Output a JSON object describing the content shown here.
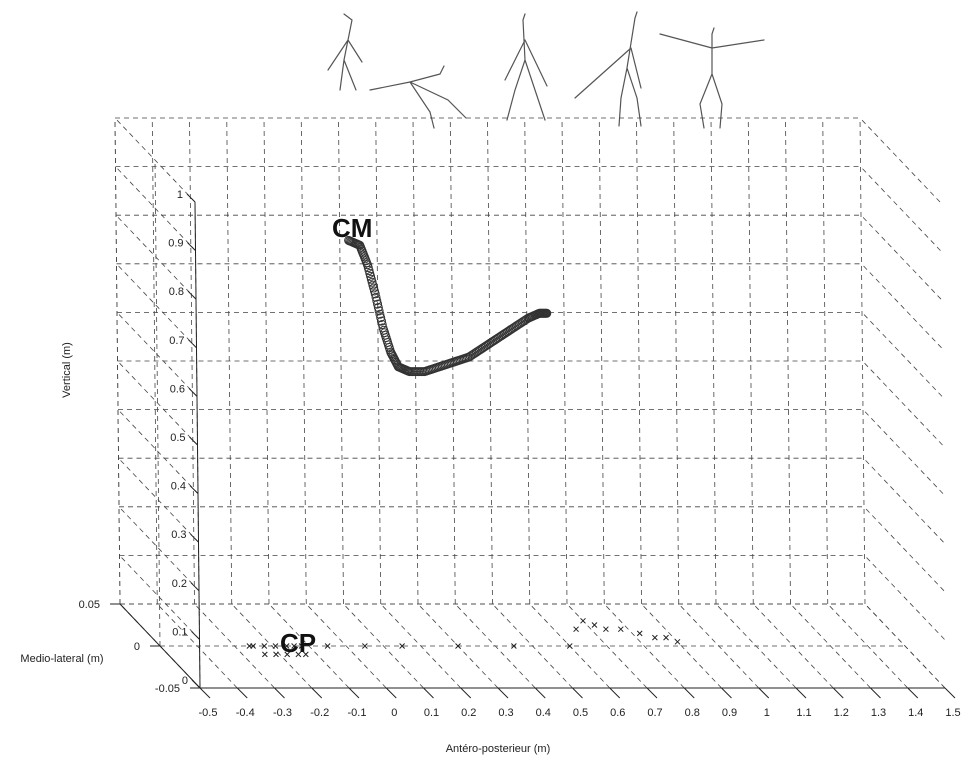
{
  "chart_data": {
    "type": "scatter",
    "title": "",
    "xlabel": "Antéro-posterieur (m)",
    "ylabel": "Medio-lateral (m)",
    "zlabel": "Vertical (m)",
    "xlim": [
      -0.5,
      1.5
    ],
    "ylim": [
      -0.05,
      0.05
    ],
    "zlim": [
      0,
      1
    ],
    "xticks": [
      "-0.5",
      "-0.4",
      "-0.3",
      "-0.2",
      "-0.1",
      "0",
      "0.1",
      "0.2",
      "0.3",
      "0.4",
      "0.5",
      "0.6",
      "0.7",
      "0.8",
      "0.9",
      "1",
      "1.1",
      "1.2",
      "1.3",
      "1.4",
      "1.5"
    ],
    "yticks": [
      "-0.05",
      "0",
      "0.05"
    ],
    "zticks": [
      "0",
      "0.1",
      "0.2",
      "0.3",
      "0.4",
      "0.5",
      "0.6",
      "0.7",
      "0.8",
      "0.9",
      "1"
    ],
    "grid": true,
    "annotations": [
      "CM",
      "CP"
    ],
    "series": [
      {
        "name": "CM",
        "marker": "circle",
        "x": [
          0.06,
          0.09,
          0.11,
          0.13,
          0.15,
          0.17,
          0.19,
          0.22,
          0.26,
          0.3,
          0.34,
          0.38,
          0.42,
          0.46,
          0.5,
          0.54,
          0.57,
          0.59
        ],
        "y": [
          0.02,
          0.02,
          0.02,
          0.02,
          0.02,
          0.02,
          0.02,
          0.02,
          0.02,
          0.02,
          0.02,
          0.02,
          0.02,
          0.02,
          0.02,
          0.02,
          0.02,
          0.02
        ],
        "z": [
          0.8,
          0.79,
          0.75,
          0.69,
          0.62,
          0.57,
          0.54,
          0.53,
          0.53,
          0.54,
          0.55,
          0.56,
          0.58,
          0.6,
          0.62,
          0.64,
          0.65,
          0.65
        ]
      },
      {
        "name": "CP",
        "marker": "x",
        "x": [
          -0.25,
          -0.22,
          -0.19,
          -0.16,
          -0.14,
          -0.13,
          -0.15,
          -0.18,
          -0.21,
          -0.24,
          -0.26,
          -0.12,
          -0.05,
          0.05,
          0.15,
          0.3,
          0.45,
          0.6,
          0.66,
          0.7,
          0.72,
          0.74,
          0.78,
          0.82,
          0.85,
          0.88,
          0.9
        ],
        "y": [
          0.0,
          0.0,
          0.0,
          0.0,
          0.0,
          -0.01,
          -0.01,
          -0.01,
          -0.01,
          -0.01,
          0.0,
          0.0,
          0.0,
          0.0,
          0.0,
          0.0,
          0.0,
          0.0,
          0.02,
          0.03,
          0.025,
          0.02,
          0.02,
          0.015,
          0.01,
          0.01,
          0.005
        ],
        "z": [
          0,
          0,
          0,
          0,
          0,
          0,
          0,
          0,
          0,
          0,
          0,
          0,
          0,
          0,
          0,
          0,
          0,
          0,
          0,
          0,
          0,
          0,
          0,
          0,
          0,
          0,
          0
        ]
      }
    ]
  }
}
